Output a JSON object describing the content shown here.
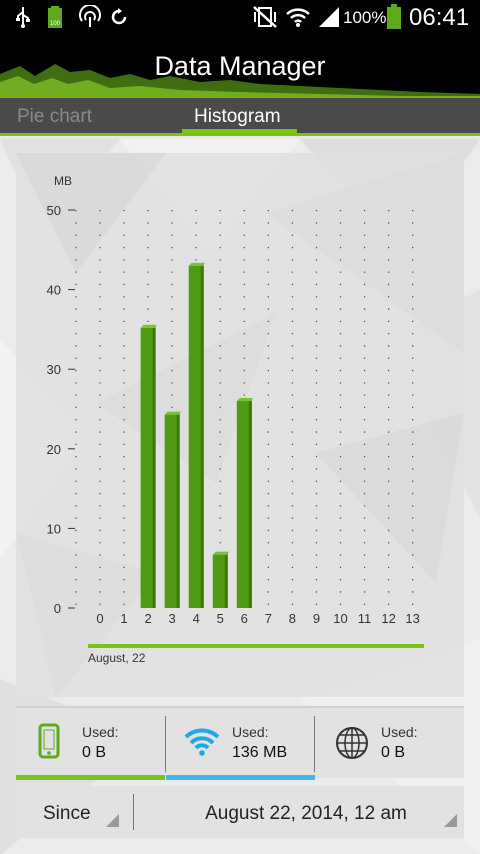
{
  "status_bar": {
    "battery_percent": "100%",
    "time": "06:41",
    "icons": [
      "usb-icon",
      "battery-full-small-icon",
      "nfc-icon",
      "sync-icon",
      "vibrate-mute-icon",
      "wifi-icon",
      "signal-icon",
      "battery-icon"
    ]
  },
  "header": {
    "title": "Data Manager"
  },
  "tabs": [
    {
      "label": "Pie chart",
      "selected": false
    },
    {
      "label": "Histogram",
      "selected": true
    }
  ],
  "chart_data": {
    "type": "bar",
    "categories": [
      "0",
      "1",
      "2",
      "3",
      "4",
      "5",
      "6",
      "7",
      "8",
      "9",
      "10",
      "11",
      "12",
      "13"
    ],
    "values": [
      0,
      0,
      35.2,
      24.3,
      43,
      6.7,
      26,
      0,
      0,
      0,
      0,
      0,
      0,
      0
    ],
    "ylabel": "MB",
    "yticks": [
      "0",
      "10",
      "20",
      "30",
      "40",
      "50"
    ],
    "ylim": [
      0,
      50
    ],
    "grid": "dotted-vertical",
    "bar_color": "#4f9a12",
    "period_label": "August, 22"
  },
  "usage": [
    {
      "icon": "phone-icon",
      "label": "Used:",
      "value": "0 B",
      "underline_color": "#7dc11c"
    },
    {
      "icon": "wifi-icon",
      "label": "Used:",
      "value": "136 MB",
      "underline_color": "#3fb7ea"
    },
    {
      "icon": "globe-icon",
      "label": "Used:",
      "value": "0 B",
      "underline_color": ""
    }
  ],
  "since": {
    "label": "Since",
    "date": "August 22, 2014, 12 am"
  },
  "colors": {
    "accent": "#7dc11c",
    "wifi_accent": "#3fb7ea",
    "bar": "#4f9a12"
  }
}
